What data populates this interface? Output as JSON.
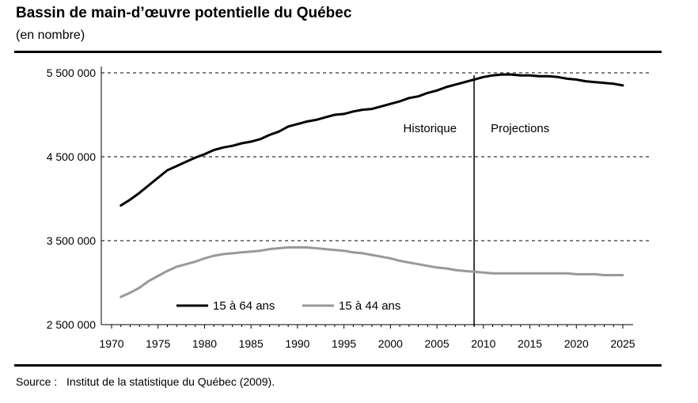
{
  "title": "Bassin de main-d’œuvre potentielle du Québec",
  "subtitle": "(en nombre)",
  "source": {
    "label": "Source :",
    "text": "Institut de la statistique du Québec (2009)."
  },
  "chart_data": {
    "type": "line",
    "ylim": [
      2500000,
      5500000
    ],
    "y_ticks": [
      2500000,
      3500000,
      4500000,
      5500000
    ],
    "y_tick_labels": [
      "2 500 000",
      "3 500 000",
      "4 500 000",
      "5 500 000"
    ],
    "xlim": [
      1970,
      2025
    ],
    "x_ticks": [
      1970,
      1975,
      1980,
      1985,
      1990,
      1995,
      2000,
      2005,
      2010,
      2015,
      2020,
      2025
    ],
    "x_tick_labels": [
      "1970",
      "1975",
      "1980",
      "1985",
      "1990",
      "1995",
      "2000",
      "2005",
      "2010",
      "2015",
      "2020",
      "2025"
    ],
    "grid": "horizontal dashed at 3 500 000, 4 500 000, 5 500 000",
    "divider_year": 2009,
    "annotations": [
      "Historique",
      "Projections"
    ],
    "legend_position": "bottom-left",
    "series": [
      {
        "name": "15 à 64 ans",
        "color": "#000000",
        "x": [
          1971,
          1972,
          1973,
          1974,
          1975,
          1976,
          1977,
          1978,
          1979,
          1980,
          1981,
          1982,
          1983,
          1984,
          1985,
          1986,
          1987,
          1988,
          1989,
          1990,
          1991,
          1992,
          1993,
          1994,
          1995,
          1996,
          1997,
          1998,
          1999,
          2000,
          2001,
          2002,
          2003,
          2004,
          2005,
          2006,
          2007,
          2008,
          2009,
          2010,
          2011,
          2012,
          2013,
          2014,
          2015,
          2016,
          2017,
          2018,
          2019,
          2020,
          2021,
          2022,
          2023,
          2024,
          2025
        ],
        "values": [
          3920000,
          3990000,
          4070000,
          4160000,
          4250000,
          4340000,
          4390000,
          4440000,
          4490000,
          4530000,
          4580000,
          4610000,
          4630000,
          4660000,
          4680000,
          4710000,
          4760000,
          4800000,
          4860000,
          4890000,
          4920000,
          4940000,
          4970000,
          5000000,
          5010000,
          5040000,
          5060000,
          5070000,
          5100000,
          5130000,
          5160000,
          5200000,
          5220000,
          5260000,
          5290000,
          5330000,
          5360000,
          5390000,
          5420000,
          5450000,
          5470000,
          5480000,
          5480000,
          5470000,
          5470000,
          5460000,
          5460000,
          5450000,
          5430000,
          5420000,
          5400000,
          5390000,
          5380000,
          5370000,
          5350000
        ]
      },
      {
        "name": "15 à 44 ans",
        "color": "#999999",
        "x": [
          1971,
          1972,
          1973,
          1974,
          1975,
          1976,
          1977,
          1978,
          1979,
          1980,
          1981,
          1982,
          1983,
          1984,
          1985,
          1986,
          1987,
          1988,
          1989,
          1990,
          1991,
          1992,
          1993,
          1994,
          1995,
          1996,
          1997,
          1998,
          1999,
          2000,
          2001,
          2002,
          2003,
          2004,
          2005,
          2006,
          2007,
          2008,
          2009,
          2010,
          2011,
          2012,
          2013,
          2014,
          2015,
          2016,
          2017,
          2018,
          2019,
          2020,
          2021,
          2022,
          2023,
          2024,
          2025
        ],
        "values": [
          2830000,
          2880000,
          2940000,
          3020000,
          3080000,
          3140000,
          3190000,
          3220000,
          3250000,
          3290000,
          3320000,
          3340000,
          3350000,
          3360000,
          3370000,
          3380000,
          3400000,
          3410000,
          3420000,
          3420000,
          3420000,
          3410000,
          3400000,
          3390000,
          3380000,
          3360000,
          3350000,
          3330000,
          3310000,
          3290000,
          3260000,
          3240000,
          3220000,
          3200000,
          3180000,
          3170000,
          3150000,
          3140000,
          3130000,
          3120000,
          3110000,
          3110000,
          3110000,
          3110000,
          3110000,
          3110000,
          3110000,
          3110000,
          3110000,
          3100000,
          3100000,
          3100000,
          3090000,
          3090000,
          3090000
        ]
      }
    ]
  }
}
